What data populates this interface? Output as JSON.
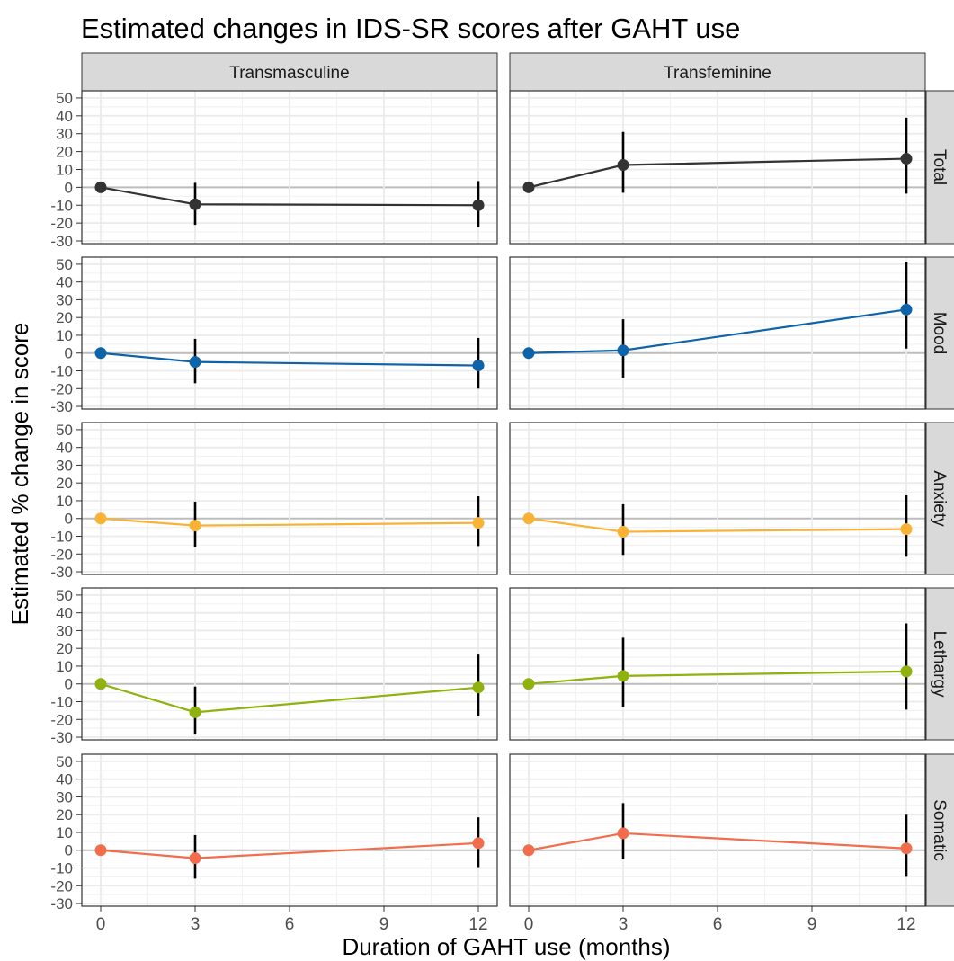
{
  "chart_data": {
    "type": "line",
    "title": "Estimated changes in IDS-SR scores after GAHT use",
    "xlabel": "Duration of GAHT use (months)",
    "ylabel": "Estimated % change in score",
    "x": [
      0,
      3,
      12
    ],
    "x_ticks": [
      0,
      3,
      6,
      9,
      12
    ],
    "x_tick_labels": [
      "0",
      "3",
      "6",
      "9",
      "12"
    ],
    "xlim": [
      -0.6,
      12.6
    ],
    "y_ticks": [
      50,
      40,
      30,
      20,
      10,
      0,
      -10,
      -20,
      -30
    ],
    "y_tick_labels": [
      "50",
      "40",
      "30",
      "20",
      "10",
      "0",
      "-10",
      "-20",
      "-30"
    ],
    "ylim": [
      -31.5,
      54
    ],
    "grid": true,
    "columns": [
      "Transmasculine",
      "Transfeminine"
    ],
    "rows": [
      {
        "facet": "Total",
        "color": "#333333",
        "panels": [
          {
            "column": "Transmasculine",
            "y": [
              0,
              -9.5,
              -10
            ],
            "lower": [
              0,
              -21,
              -22
            ],
            "upper": [
              0,
              2.5,
              3.5
            ]
          },
          {
            "column": "Transfeminine",
            "y": [
              0,
              12.5,
              16
            ],
            "lower": [
              0,
              -3,
              -3.5
            ],
            "upper": [
              0,
              31,
              39
            ]
          }
        ]
      },
      {
        "facet": "Mood",
        "color": "#0f63a8",
        "panels": [
          {
            "column": "Transmasculine",
            "y": [
              0,
              -5,
              -7
            ],
            "lower": [
              0,
              -17,
              -20
            ],
            "upper": [
              0,
              8,
              8.5
            ]
          },
          {
            "column": "Transfeminine",
            "y": [
              0,
              1.5,
              24.5
            ],
            "lower": [
              0,
              -14,
              2.5
            ],
            "upper": [
              0,
              19,
              51
            ]
          }
        ]
      },
      {
        "facet": "Anxiety",
        "color": "#f9b233",
        "panels": [
          {
            "column": "Transmasculine",
            "y": [
              0,
              -4,
              -2.5
            ],
            "lower": [
              0,
              -16,
              -15.5
            ],
            "upper": [
              0,
              9.5,
              12.5
            ]
          },
          {
            "column": "Transfeminine",
            "y": [
              0,
              -7.5,
              -6
            ],
            "lower": [
              0,
              -20.5,
              -21.5
            ],
            "upper": [
              0,
              8,
              13
            ]
          }
        ]
      },
      {
        "facet": "Lethargy",
        "color": "#8fb20e",
        "panels": [
          {
            "column": "Transmasculine",
            "y": [
              0,
              -16,
              -2
            ],
            "lower": [
              0,
              -28.5,
              -18
            ],
            "upper": [
              0,
              -1.5,
              16.5
            ]
          },
          {
            "column": "Transfeminine",
            "y": [
              0,
              4.5,
              7
            ],
            "lower": [
              0,
              -13,
              -14.5
            ],
            "upper": [
              0,
              26,
              34
            ]
          }
        ]
      },
      {
        "facet": "Somatic",
        "color": "#f26d4b",
        "panels": [
          {
            "column": "Transmasculine",
            "y": [
              0,
              -4.5,
              4
            ],
            "lower": [
              0,
              -16,
              -9.5
            ],
            "upper": [
              0,
              8.5,
              18.5
            ]
          },
          {
            "column": "Transfeminine",
            "y": [
              0,
              9.5,
              1
            ],
            "lower": [
              0,
              -5,
              -15
            ],
            "upper": [
              0,
              26.5,
              20
            ]
          }
        ]
      }
    ]
  }
}
